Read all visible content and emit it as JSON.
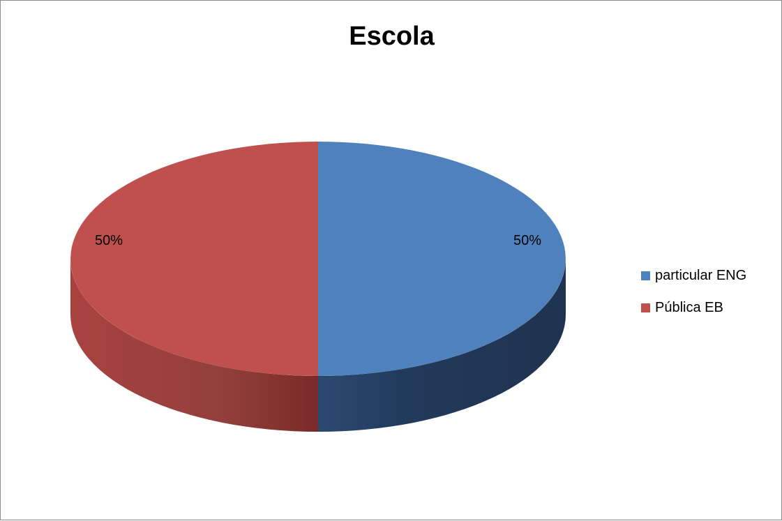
{
  "chart_data": {
    "type": "pie",
    "title": "Escola",
    "categories": [
      "particular ENG",
      "Pública EB"
    ],
    "values": [
      50,
      50
    ],
    "data_labels": [
      "50%",
      "50%"
    ],
    "colors": [
      "#4f81bd",
      "#c0504d"
    ],
    "side_colors": [
      "#223a5c",
      "#7a2a28"
    ],
    "style": "3d",
    "legend_position": "right"
  }
}
